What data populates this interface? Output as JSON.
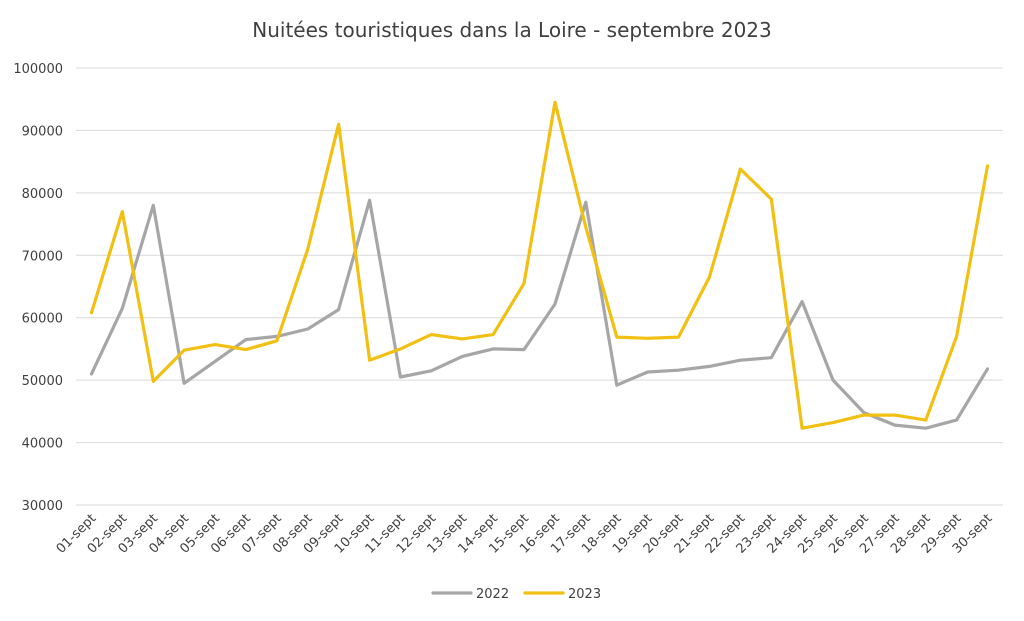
{
  "chart_data": {
    "type": "line",
    "title": "Nuitées touristiques dans la Loire - septembre 2023",
    "xlabel": "",
    "ylabel": "",
    "ylim": [
      30000,
      100000
    ],
    "y_ticks": [
      30000,
      40000,
      50000,
      60000,
      70000,
      80000,
      90000,
      100000
    ],
    "y_tick_labels": [
      "30000",
      "40000",
      "50000",
      "60000",
      "70000",
      "80000",
      "90000",
      "100000"
    ],
    "grid": "horizontal",
    "legend_position": "bottom",
    "categories": [
      "01-sept",
      "02-sept",
      "03-sept",
      "04-sept",
      "05-sept",
      "06-sept",
      "07-sept",
      "08-sept",
      "09-sept",
      "10-sept",
      "11-sept",
      "12-sept",
      "13-sept",
      "14-sept",
      "15-sept",
      "16-sept",
      "17-sept",
      "18-sept",
      "19-sept",
      "20-sept",
      "21-sept",
      "22-sept",
      "23-sept",
      "24-sept",
      "25-sept",
      "26-sept",
      "27-sept",
      "28-sept",
      "29-sept",
      "30-sept"
    ],
    "series": [
      {
        "name": "2022",
        "color": "#a6a6a6",
        "values": [
          51000,
          61500,
          78000,
          49500,
          53000,
          56500,
          57000,
          58200,
          61300,
          78800,
          50500,
          51500,
          53800,
          55000,
          54900,
          62200,
          78500,
          49200,
          51300,
          51600,
          52200,
          53200,
          53600,
          62600,
          50000,
          44800,
          42800,
          42300,
          43600,
          51800
        ]
      },
      {
        "name": "2023",
        "color": "#f2bf13",
        "values": [
          60800,
          77000,
          49800,
          54800,
          55700,
          54900,
          56300,
          71000,
          91000,
          53200,
          55000,
          57300,
          56600,
          57300,
          65500,
          94500,
          74500,
          56900,
          56700,
          56900,
          66500,
          83800,
          79000,
          42300,
          43200,
          44400,
          44400,
          43600,
          57000,
          84300
        ]
      }
    ]
  }
}
